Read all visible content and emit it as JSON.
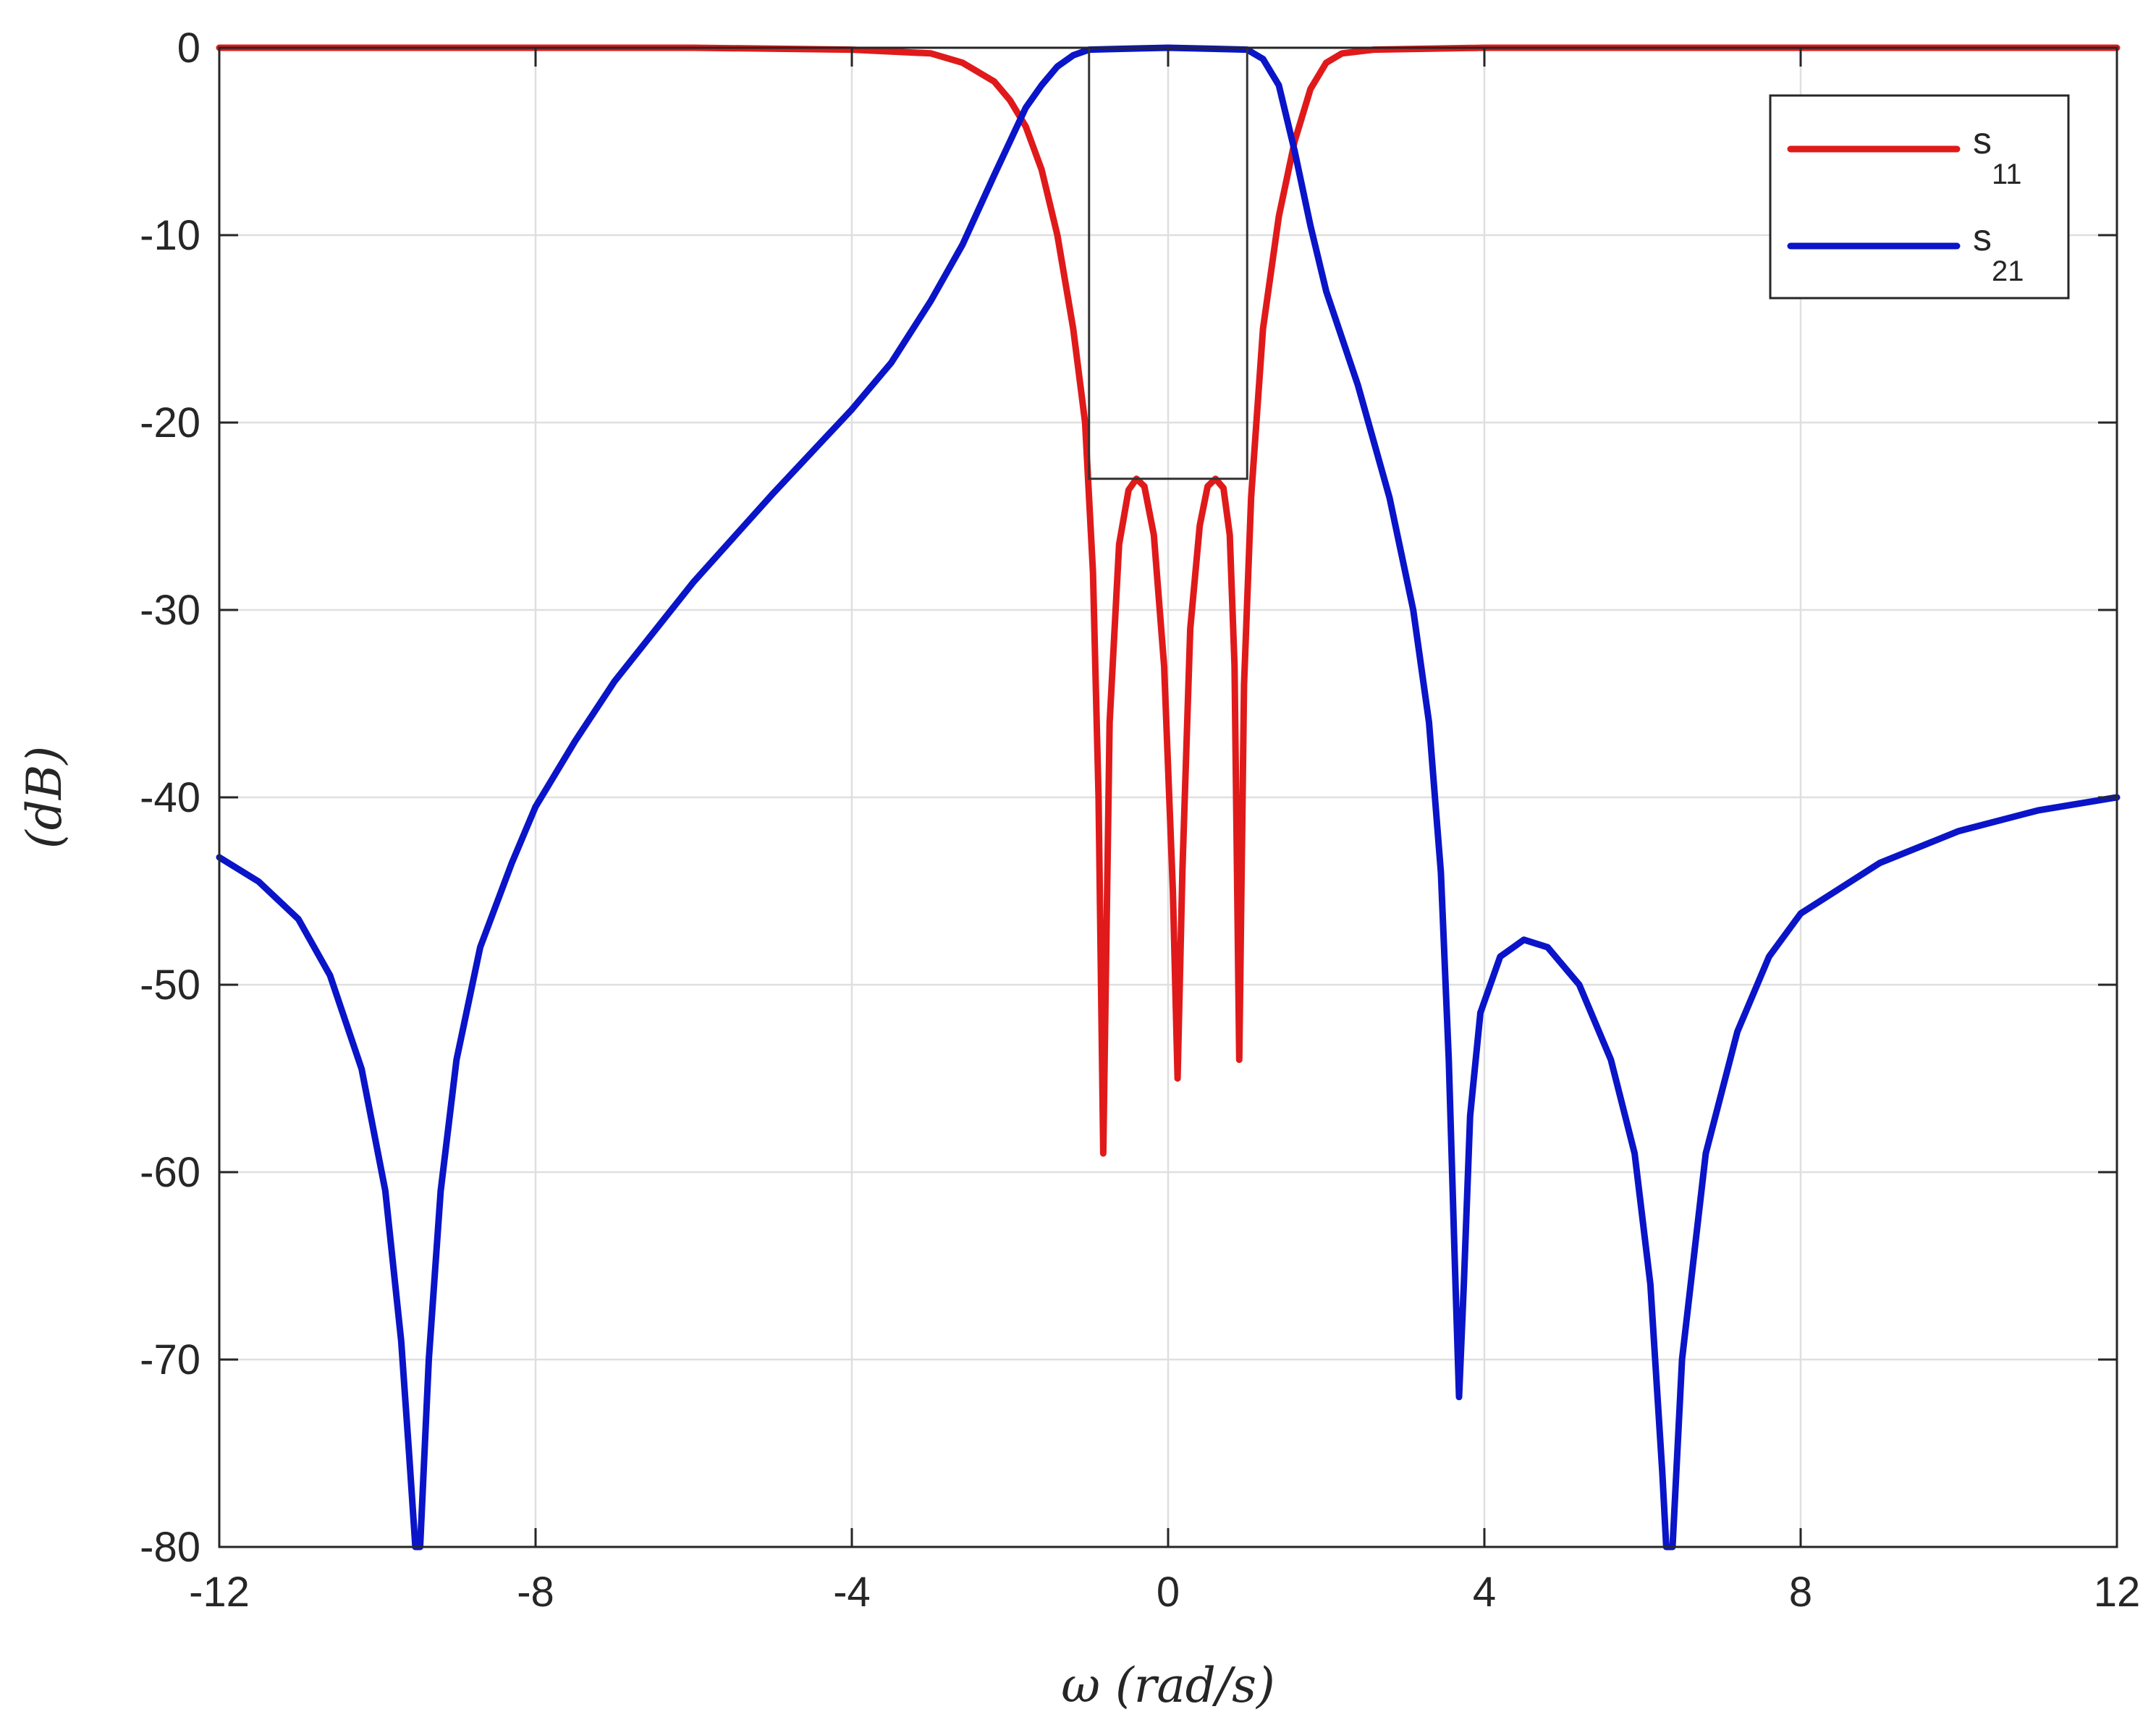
{
  "chart_data": {
    "type": "line",
    "title": "",
    "xlabel": "ω (rad/s)",
    "ylabel": "(dB)",
    "xlim": [
      -12,
      12
    ],
    "ylim": [
      -80,
      0
    ],
    "x_ticks": [
      -12,
      -8,
      -4,
      0,
      4,
      8,
      12
    ],
    "y_ticks": [
      0,
      -10,
      -20,
      -30,
      -40,
      -50,
      -60,
      -70,
      -80
    ],
    "x_tick_labels": [
      "-12",
      "-8",
      "-4",
      "0",
      "4",
      "8",
      "12"
    ],
    "y_tick_labels": [
      "0",
      "-10",
      "-20",
      "-30",
      "-40",
      "-50",
      "-60",
      "-70",
      "-80"
    ],
    "grid": true,
    "legend": {
      "placement": "top-right"
    },
    "series": [
      {
        "name": "s11",
        "label_main": "s",
        "label_sub": "11",
        "color": "#e01a1a",
        "points": [
          [
            -12,
            0
          ],
          [
            -6,
            0
          ],
          [
            -4,
            -0.1
          ],
          [
            -3,
            -0.3
          ],
          [
            -2.6,
            -0.8
          ],
          [
            -2.2,
            -1.8
          ],
          [
            -2.0,
            -2.8
          ],
          [
            -1.8,
            -4.2
          ],
          [
            -1.6,
            -6.5
          ],
          [
            -1.4,
            -10.0
          ],
          [
            -1.2,
            -15.0
          ],
          [
            -1.05,
            -20.0
          ],
          [
            -0.95,
            -28.0
          ],
          [
            -0.88,
            -40.0
          ],
          [
            -0.82,
            -59.0
          ],
          [
            -0.74,
            -36.0
          ],
          [
            -0.62,
            -26.5
          ],
          [
            -0.5,
            -23.6
          ],
          [
            -0.4,
            -23.0
          ],
          [
            -0.3,
            -23.4
          ],
          [
            -0.18,
            -26.0
          ],
          [
            -0.05,
            -33.0
          ],
          [
            0.06,
            -45.0
          ],
          [
            0.12,
            -55.0
          ],
          [
            0.18,
            -44.0
          ],
          [
            0.28,
            -31.0
          ],
          [
            0.4,
            -25.5
          ],
          [
            0.5,
            -23.4
          ],
          [
            0.6,
            -23.0
          ],
          [
            0.7,
            -23.5
          ],
          [
            0.78,
            -26.0
          ],
          [
            0.84,
            -33.0
          ],
          [
            0.9,
            -54.0
          ],
          [
            0.96,
            -34.0
          ],
          [
            1.05,
            -24.0
          ],
          [
            1.2,
            -15.0
          ],
          [
            1.4,
            -9.0
          ],
          [
            1.6,
            -5.0
          ],
          [
            1.8,
            -2.2
          ],
          [
            2.0,
            -0.8
          ],
          [
            2.2,
            -0.3
          ],
          [
            2.6,
            -0.1
          ],
          [
            4,
            0
          ],
          [
            12,
            0
          ]
        ]
      },
      {
        "name": "s21",
        "label_main": "s",
        "label_sub": "21",
        "color": "#0a14c8",
        "points": [
          [
            -12,
            -43.2
          ],
          [
            -11.5,
            -44.5
          ],
          [
            -11,
            -46.5
          ],
          [
            -10.6,
            -49.5
          ],
          [
            -10.2,
            -54.5
          ],
          [
            -9.9,
            -61.0
          ],
          [
            -9.7,
            -69.0
          ],
          [
            -9.6,
            -75.0
          ],
          [
            -9.52,
            -80.0
          ],
          [
            -9.46,
            -80.0
          ],
          [
            -9.35,
            -70.0
          ],
          [
            -9.2,
            -61.0
          ],
          [
            -9.0,
            -54.0
          ],
          [
            -8.7,
            -48.0
          ],
          [
            -8.3,
            -43.5
          ],
          [
            -8.0,
            -40.5
          ],
          [
            -7.5,
            -37.0
          ],
          [
            -7.0,
            -33.8
          ],
          [
            -6.0,
            -28.5
          ],
          [
            -5.0,
            -23.8
          ],
          [
            -4.0,
            -19.3
          ],
          [
            -3.5,
            -16.8
          ],
          [
            -3.0,
            -13.5
          ],
          [
            -2.6,
            -10.5
          ],
          [
            -2.2,
            -6.8
          ],
          [
            -2.0,
            -5.0
          ],
          [
            -1.8,
            -3.2
          ],
          [
            -1.6,
            -2.0
          ],
          [
            -1.4,
            -1.0
          ],
          [
            -1.2,
            -0.4
          ],
          [
            -1.0,
            -0.1
          ],
          [
            -0.5,
            -0.05
          ],
          [
            0,
            0
          ],
          [
            0.5,
            -0.05
          ],
          [
            1.0,
            -0.1
          ],
          [
            1.2,
            -0.6
          ],
          [
            1.4,
            -2.0
          ],
          [
            1.6,
            -5.5
          ],
          [
            1.8,
            -9.5
          ],
          [
            2.0,
            -13.0
          ],
          [
            2.4,
            -18.0
          ],
          [
            2.8,
            -24.0
          ],
          [
            3.1,
            -30.0
          ],
          [
            3.3,
            -36.0
          ],
          [
            3.45,
            -44.0
          ],
          [
            3.55,
            -54.0
          ],
          [
            3.62,
            -64.0
          ],
          [
            3.68,
            -72.0
          ],
          [
            3.74,
            -66.0
          ],
          [
            3.82,
            -57.0
          ],
          [
            3.95,
            -51.5
          ],
          [
            4.2,
            -48.5
          ],
          [
            4.5,
            -47.6
          ],
          [
            4.8,
            -48.0
          ],
          [
            5.2,
            -50.0
          ],
          [
            5.6,
            -54.0
          ],
          [
            5.9,
            -59.0
          ],
          [
            6.1,
            -66.0
          ],
          [
            6.25,
            -76.0
          ],
          [
            6.3,
            -80.0
          ],
          [
            6.38,
            -80.0
          ],
          [
            6.5,
            -70.0
          ],
          [
            6.8,
            -59.0
          ],
          [
            7.2,
            -52.5
          ],
          [
            7.6,
            -48.5
          ],
          [
            8.0,
            -46.2
          ],
          [
            9.0,
            -43.5
          ],
          [
            10.0,
            -41.8
          ],
          [
            11.0,
            -40.7
          ],
          [
            12.0,
            -40.0
          ]
        ]
      }
    ],
    "mask_box": {
      "color": "#333333",
      "x_range": [
        -1,
        1
      ],
      "y_range": [
        -23,
        0
      ]
    }
  }
}
